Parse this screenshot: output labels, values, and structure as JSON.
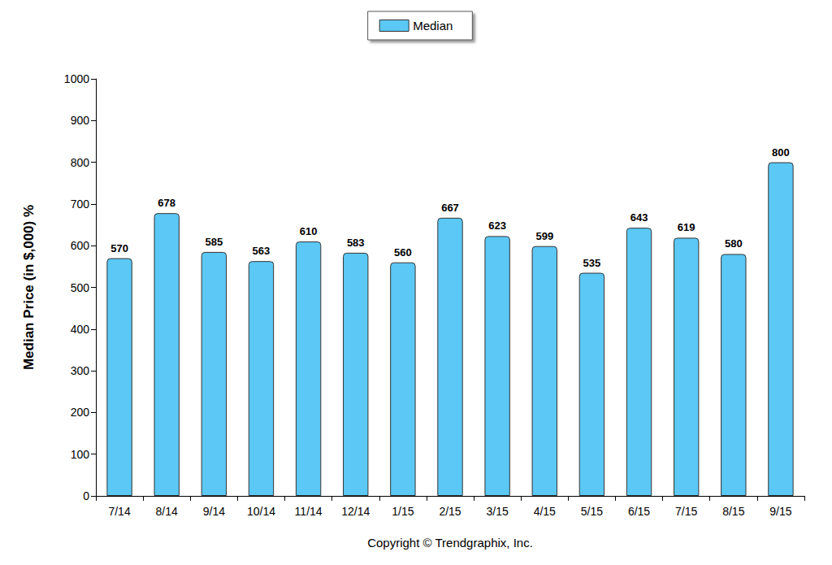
{
  "chart_data": {
    "type": "bar",
    "ylabel": "Median Price (in $,000) %",
    "xlabel": "Copyright © Trendgraphix, Inc.",
    "categories": [
      "7/14",
      "8/14",
      "9/14",
      "10/14",
      "11/14",
      "12/14",
      "1/15",
      "2/15",
      "3/15",
      "4/15",
      "5/15",
      "6/15",
      "7/15",
      "8/15",
      "9/15"
    ],
    "series": [
      {
        "name": "Median",
        "color": "#5bc8f5",
        "values": [
          570,
          678,
          585,
          563,
          610,
          583,
          560,
          667,
          623,
          599,
          535,
          643,
          619,
          580,
          800
        ]
      }
    ],
    "ylim": [
      0,
      1000
    ],
    "yticks": [
      0,
      100,
      200,
      300,
      400,
      500,
      600,
      700,
      800,
      900,
      1000
    ],
    "grid": false,
    "legend": "top",
    "data_labels": true
  }
}
